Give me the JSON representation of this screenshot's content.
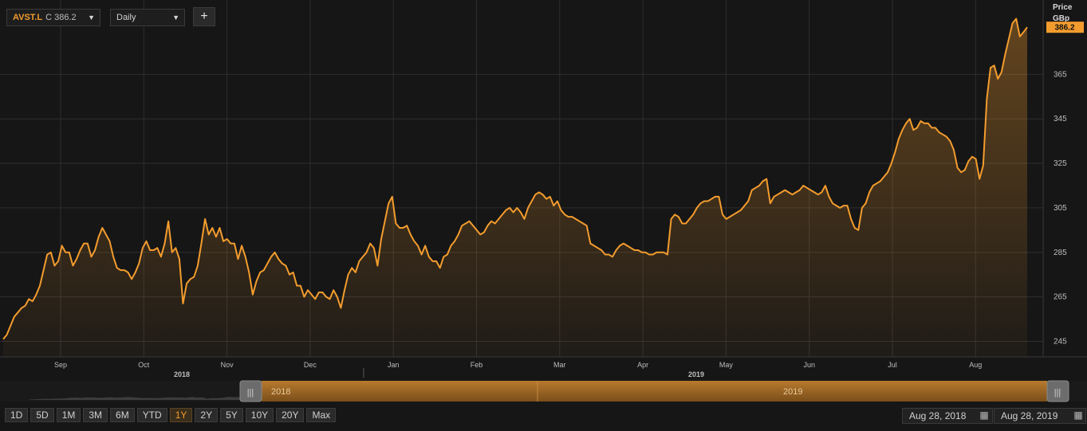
{
  "toolbar": {
    "ticker": "AVST.L",
    "close_label": "C 386.2",
    "interval": "Daily",
    "add_label": "+"
  },
  "axis": {
    "y_title_line1": "Price",
    "y_title_line2": "GBp",
    "last_price_label": "386.2",
    "year_labels": [
      "2018",
      "2019"
    ]
  },
  "navigator": {
    "label_2018": "2018",
    "label_2019": "2019"
  },
  "ranges": [
    "1D",
    "5D",
    "1M",
    "3M",
    "6M",
    "YTD",
    "1Y",
    "2Y",
    "5Y",
    "10Y",
    "20Y",
    "Max"
  ],
  "active_range": "1Y",
  "dates": {
    "start": "Aug 28, 2018",
    "end": "Aug 28, 2019"
  },
  "colors": {
    "line": "#f39c2e",
    "background": "#161616",
    "grid": "#2e2e2e"
  },
  "chart_data": {
    "type": "area",
    "ylabel": "Price GBp",
    "ylim": [
      238,
      397
    ],
    "yticks": [
      245,
      265,
      285,
      305,
      325,
      345,
      365
    ],
    "x_ticks": [
      "Sep",
      "Oct",
      "Nov",
      "Dec",
      "Jan",
      "Feb",
      "Mar",
      "Apr",
      "May",
      "Jun",
      "Jul",
      "Aug"
    ],
    "series": [
      {
        "values": [
          246,
          248,
          252,
          256,
          258,
          260,
          261,
          264,
          263,
          266,
          270,
          277,
          284,
          285,
          279,
          281,
          288,
          285,
          285,
          279,
          282,
          286,
          289,
          289,
          283,
          286,
          292,
          296,
          293,
          290,
          283,
          278,
          277,
          277,
          276,
          273,
          276,
          280,
          287,
          290,
          286,
          286,
          287,
          283,
          289,
          299,
          285,
          287,
          282,
          262,
          271,
          273,
          274,
          279,
          289,
          300,
          293,
          296,
          292,
          296,
          290,
          291,
          289,
          289,
          282,
          288,
          283,
          276,
          266,
          272,
          276,
          277,
          280,
          283,
          285,
          282,
          280,
          279,
          275,
          276,
          270,
          270,
          265,
          268,
          266,
          264,
          267,
          267,
          265,
          264,
          268,
          265,
          260,
          268,
          275,
          278,
          276,
          281,
          283,
          285,
          289,
          287,
          279,
          291,
          299,
          307,
          310,
          298,
          296,
          296,
          297,
          293,
          290,
          288,
          284,
          288,
          283,
          281,
          281,
          278,
          283,
          284,
          288,
          290,
          293,
          297,
          298,
          299,
          297,
          295,
          293,
          294,
          297,
          299,
          298,
          300,
          302,
          304,
          305,
          303,
          305,
          303,
          300,
          305,
          308,
          311,
          312,
          311,
          309,
          310,
          306,
          308,
          304,
          302,
          301,
          301,
          300,
          299,
          298,
          297,
          289,
          288,
          287,
          286,
          284,
          284,
          283,
          286,
          288,
          289,
          288,
          287,
          286,
          286,
          285,
          285,
          284,
          284,
          285,
          285,
          285,
          284,
          300,
          302,
          301,
          298,
          298,
          300,
          302,
          305,
          307,
          308,
          308,
          309,
          310,
          310,
          302,
          300,
          301,
          302,
          303,
          304,
          306,
          308,
          313,
          314,
          315,
          317,
          318,
          307,
          310,
          311,
          312,
          313,
          312,
          311,
          312,
          313,
          315,
          314,
          313,
          312,
          311,
          312,
          315,
          310,
          307,
          306,
          305,
          306,
          306,
          300,
          296,
          295,
          305,
          307,
          312,
          315,
          316,
          317,
          319,
          321,
          325,
          330,
          336,
          340,
          343,
          345,
          340,
          341,
          344,
          343,
          343,
          341,
          341,
          339,
          338,
          337,
          335,
          331,
          323,
          321,
          322,
          326,
          328,
          327,
          318,
          324,
          354,
          368,
          369,
          363,
          366,
          374,
          381,
          388,
          390,
          382,
          384,
          386.2
        ]
      }
    ]
  }
}
